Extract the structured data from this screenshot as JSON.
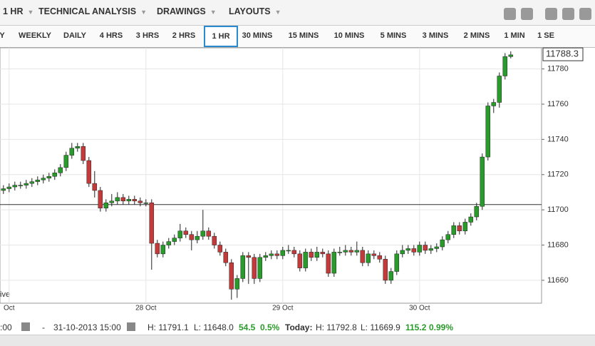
{
  "toolbar": {
    "interval": "1 HR",
    "menus": [
      "TECHNICAL ANALYSIS",
      "DRAWINGS",
      "LAYOUTS"
    ]
  },
  "timeframes": {
    "items": [
      "Y",
      "WEEKLY",
      "DAILY",
      "4 HRS",
      "3 HRS",
      "2 HRS",
      "1 HR",
      "30 MINS",
      "15 MINS",
      "10 MINS",
      "5 MINS",
      "3 MINS",
      "2 MINS",
      "1 MIN",
      "1 SE"
    ],
    "active": 6
  },
  "chart_data": {
    "type": "candlestick",
    "x": [
      -1,
      0,
      1,
      2,
      3,
      4,
      5,
      6,
      7,
      8,
      9,
      10,
      11,
      12,
      13,
      14,
      15,
      16,
      17,
      18,
      19,
      20,
      21,
      22,
      23,
      24,
      25,
      26,
      27,
      28,
      29,
      30,
      31,
      32,
      33,
      34,
      35,
      36,
      37,
      38,
      39,
      40,
      41,
      42,
      43,
      44,
      45,
      46,
      47,
      48,
      49,
      50,
      51,
      52,
      53,
      54,
      55,
      56,
      57,
      58,
      59,
      60,
      61,
      62,
      63,
      64,
      65,
      66,
      67,
      68,
      69,
      70,
      71,
      72,
      73,
      74,
      75,
      76,
      77,
      78,
      79,
      80,
      81,
      82,
      83,
      84,
      85,
      86,
      87,
      88
    ],
    "open": [
      11711,
      11712,
      11713,
      11714,
      11714,
      11715,
      11716,
      11717,
      11718,
      11719,
      11721,
      11724,
      11731,
      11735,
      11736,
      11728,
      11715,
      11711,
      11701,
      11704,
      11705,
      11707,
      11705,
      11706,
      11705,
      11704,
      11704,
      11681,
      11675,
      11680,
      11682,
      11684,
      11688,
      11686,
      11683,
      11685,
      11688,
      11685,
      11680,
      11676,
      11670,
      11655,
      11661,
      11674,
      11673,
      11661,
      11673,
      11674,
      11675,
      11674,
      11677,
      11677,
      11675,
      11667,
      11676,
      11673,
      11676,
      11675,
      11664,
      11676,
      11676,
      11677,
      11676,
      11677,
      11670,
      11675,
      11674,
      11672,
      11660,
      11665,
      11675,
      11677,
      11678,
      11676,
      11680,
      11677,
      11678,
      11679,
      11683,
      11686,
      11691,
      11688,
      11693,
      11696,
      11702,
      11730,
      11759,
      11761,
      11776,
      11787
    ],
    "high": [
      11714,
      11715,
      11716,
      11716,
      11717,
      11718,
      11719,
      11720,
      11721,
      11723,
      11726,
      11733,
      11738,
      11738,
      11738,
      11730,
      11722,
      11713,
      11706,
      11709,
      11710,
      11709,
      11708,
      11708,
      11707,
      11706,
      11706,
      11683,
      11682,
      11684,
      11686,
      11692,
      11690,
      11688,
      11688,
      11700,
      11690,
      11687,
      11682,
      11678,
      11672,
      11663,
      11676,
      11676,
      11675,
      11675,
      11676,
      11677,
      11677,
      11679,
      11680,
      11679,
      11677,
      11678,
      11678,
      11679,
      11678,
      11677,
      11678,
      11679,
      11680,
      11679,
      11682,
      11679,
      11677,
      11677,
      11676,
      11674,
      11667,
      11677,
      11680,
      11680,
      11680,
      11682,
      11682,
      11680,
      11681,
      11685,
      11688,
      11693,
      11693,
      11695,
      11698,
      11704,
      11732,
      11761,
      11763,
      11778,
      11789,
      11790
    ],
    "low": [
      11709,
      11710,
      11711,
      11712,
      11712,
      11713,
      11714,
      11715,
      11716,
      11717,
      11719,
      11722,
      11729,
      11733,
      11726,
      11713,
      11707,
      11699,
      11699,
      11702,
      11703,
      11703,
      11703,
      11703,
      11702,
      11702,
      11666,
      11673,
      11673,
      11678,
      11680,
      11682,
      11684,
      11677,
      11681,
      11683,
      11683,
      11678,
      11674,
      11668,
      11649,
      11650,
      11659,
      11658,
      11658,
      11659,
      11671,
      11672,
      11672,
      11672,
      11675,
      11673,
      11665,
      11665,
      11671,
      11671,
      11673,
      11662,
      11662,
      11674,
      11674,
      11674,
      11674,
      11668,
      11668,
      11672,
      11670,
      11658,
      11658,
      11663,
      11673,
      11675,
      11674,
      11674,
      11675,
      11675,
      11676,
      11677,
      11681,
      11684,
      11686,
      11686,
      11691,
      11694,
      11700,
      11728,
      11755,
      11758,
      11774,
      11786
    ],
    "close": [
      11712,
      11713,
      11714,
      11714,
      11715,
      11716,
      11717,
      11718,
      11719,
      11721,
      11724,
      11731,
      11735,
      11736,
      11728,
      11715,
      11711,
      11701,
      11704,
      11705,
      11707,
      11705,
      11706,
      11705,
      11704,
      11704,
      11681,
      11675,
      11680,
      11682,
      11684,
      11688,
      11686,
      11683,
      11685,
      11688,
      11685,
      11680,
      11676,
      11670,
      11655,
      11661,
      11674,
      11673,
      11661,
      11673,
      11674,
      11675,
      11674,
      11677,
      11677,
      11675,
      11667,
      11676,
      11673,
      11676,
      11675,
      11664,
      11676,
      11676,
      11677,
      11676,
      11677,
      11670,
      11675,
      11674,
      11672,
      11660,
      11665,
      11675,
      11677,
      11678,
      11676,
      11680,
      11677,
      11678,
      11679,
      11683,
      11686,
      11691,
      11688,
      11693,
      11696,
      11702,
      11730,
      11759,
      11761,
      11776,
      11787,
      11788
    ],
    "up_color": "#2a9a2a",
    "down_color": "#c23b3b",
    "xlim": [
      -1.6,
      93.4
    ],
    "xticks": [
      {
        "value": 0,
        "label": "Oct"
      },
      {
        "value": 24,
        "label": "28 Oct"
      },
      {
        "value": 48,
        "label": "29 Oct"
      },
      {
        "value": 72,
        "label": "30 Oct"
      }
    ],
    "ylim": [
      11647,
      11792
    ],
    "yticks": [
      11660,
      11680,
      11700,
      11720,
      11740,
      11760,
      11780
    ],
    "grid": true,
    "reference_line": 11703,
    "last_price": 11788.3,
    "corner_text": "ive"
  },
  "status": {
    "time_start": ":00",
    "dash": "-",
    "time_end": "31-10-2013 15:00",
    "high": "H: 11791.1",
    "low": "L: 11648.0",
    "change": "54.5",
    "change_pct": "0.5%",
    "today_label": "Today:",
    "today_high": "H: 11792.8",
    "today_low": "L: 11669.9",
    "today_change": "115.2",
    "today_change_pct": "0.99%"
  }
}
